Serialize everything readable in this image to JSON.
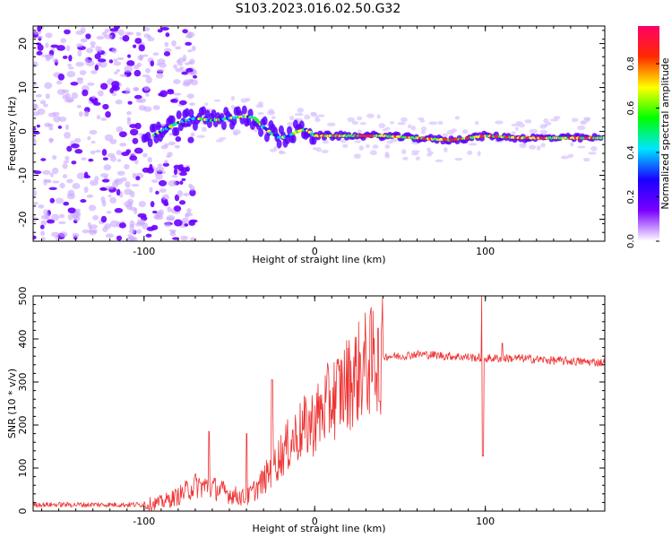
{
  "figure_title": "S103.2023.016.02.50.G32",
  "chart_data": [
    {
      "type": "heatmap",
      "title": "",
      "xlabel": "Height of straight line (km)",
      "ylabel": "Frequency (Hz)",
      "xlim": [
        -165,
        170
      ],
      "ylim": [
        -25,
        24
      ],
      "x_ticks": [
        -100,
        0,
        100
      ],
      "y_ticks": [
        -20,
        -10,
        0,
        10,
        20
      ],
      "colorbar": {
        "label": "Normalized spectral amplitude",
        "range": [
          0,
          0.97
        ],
        "ticks": [
          0,
          0.2,
          0.4,
          0.6,
          0.8
        ],
        "colormap": [
          "#ffffff",
          "#7a00ff",
          "#1a00ff",
          "#00e5ff",
          "#00ff00",
          "#ffff00",
          "#ff2a00",
          "#ff0066"
        ]
      },
      "ridge": {
        "description_points_x": [
          -100,
          -90,
          -80,
          -70,
          -60,
          -50,
          -40,
          -35,
          -30,
          -25,
          -20,
          -15,
          -10,
          -5,
          0,
          20,
          40,
          60,
          80,
          90,
          100,
          120,
          170
        ],
        "frequency_y": [
          -2,
          0,
          2,
          3,
          2.5,
          3,
          3.5,
          3,
          1,
          -0.5,
          -1.5,
          -1,
          0,
          0.5,
          -1,
          -1,
          -1,
          -1.5,
          -2,
          -1.5,
          -1,
          -1.5,
          -1.5
        ]
      },
      "x_axis_kind": "linear"
    },
    {
      "type": "line",
      "title": "",
      "xlabel": "Height of straight line (km)",
      "ylabel": "SNR (10 * v/v)",
      "xlim": [
        -165,
        170
      ],
      "ylim": [
        0,
        500
      ],
      "x_ticks": [
        -100,
        0,
        100
      ],
      "y_ticks": [
        0,
        100,
        200,
        300,
        400,
        500
      ],
      "series_color": "#ee3333",
      "baseline_x": [
        -165,
        -100,
        -90,
        -80,
        -70,
        -60,
        -50,
        -40,
        -30,
        -20,
        -10,
        0,
        10,
        20,
        30,
        40,
        50,
        60,
        80,
        100,
        120,
        140,
        170
      ],
      "baseline_y": [
        15,
        15,
        20,
        35,
        60,
        55,
        40,
        30,
        70,
        130,
        180,
        210,
        260,
        300,
        340,
        360,
        360,
        365,
        360,
        355,
        355,
        350,
        345
      ],
      "spikes": [
        {
          "x": -62,
          "y": 185
        },
        {
          "x": -40,
          "y": 180
        },
        {
          "x": -25,
          "y": 305
        },
        {
          "x": 37,
          "y": 425
        },
        {
          "x": 38,
          "y": 255
        },
        {
          "x": 98,
          "y": 500
        },
        {
          "x": 98.5,
          "y": 128
        },
        {
          "x": 110,
          "y": 390
        }
      ]
    }
  ]
}
